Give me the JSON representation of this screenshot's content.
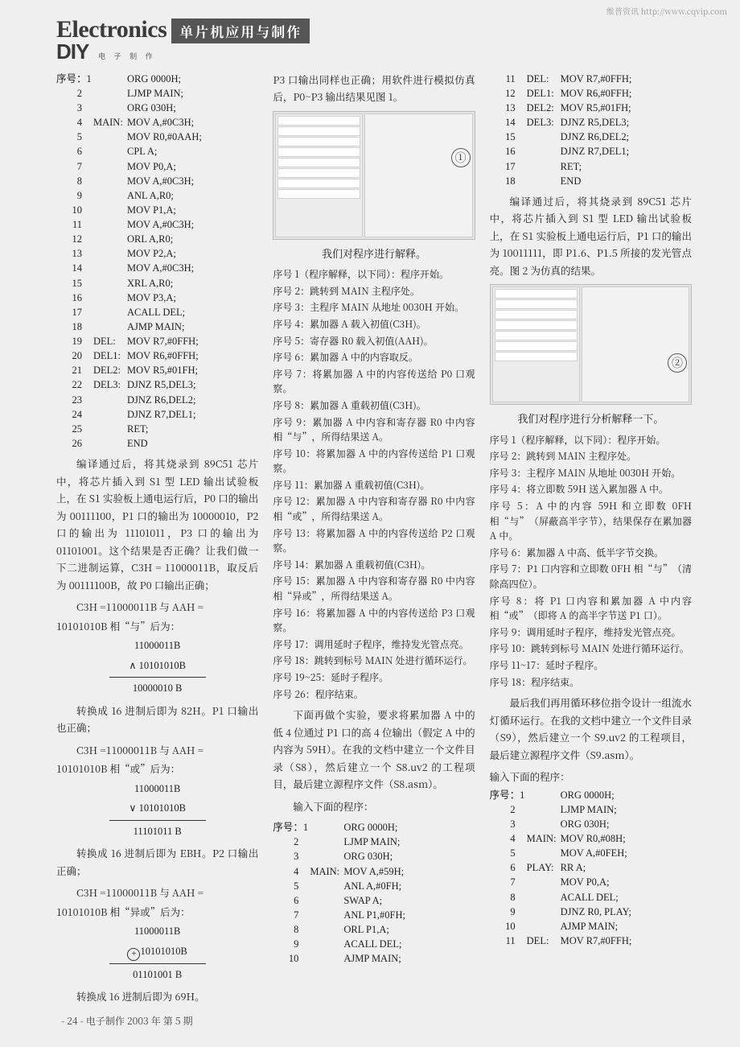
{
  "watermark": "维普资讯 http://www.cqvip.com",
  "masthead": {
    "electronics": "Electronics",
    "bar": "单片机应用与制作",
    "diy": "DIY",
    "diy_sub": "电  子  制  作"
  },
  "footer": "- 24 - 电子制作 2003 年  第 5 期",
  "codeA_label": "序号：",
  "codeA": [
    {
      "n": "1",
      "l": "",
      "c": "ORG 0000H;"
    },
    {
      "n": "2",
      "l": "",
      "c": "LJMP MAIN;"
    },
    {
      "n": "3",
      "l": "",
      "c": "ORG 030H;"
    },
    {
      "n": "4",
      "l": "MAIN:",
      "c": "MOV A,#0C3H;"
    },
    {
      "n": "5",
      "l": "",
      "c": "MOV R0,#0AAH;"
    },
    {
      "n": "6",
      "l": "",
      "c": "CPL A;"
    },
    {
      "n": "7",
      "l": "",
      "c": "MOV P0,A;"
    },
    {
      "n": "8",
      "l": "",
      "c": "MOV A,#0C3H;"
    },
    {
      "n": "9",
      "l": "",
      "c": "ANL A,R0;"
    },
    {
      "n": "10",
      "l": "",
      "c": "MOV P1,A;"
    },
    {
      "n": "11",
      "l": "",
      "c": "MOV A,#0C3H;"
    },
    {
      "n": "12",
      "l": "",
      "c": "ORL A,R0;"
    },
    {
      "n": "13",
      "l": "",
      "c": "MOV P2,A;"
    },
    {
      "n": "14",
      "l": "",
      "c": "MOV A,#0C3H;"
    },
    {
      "n": "15",
      "l": "",
      "c": "XRL A,R0;"
    },
    {
      "n": "16",
      "l": "",
      "c": "MOV P3,A;"
    },
    {
      "n": "17",
      "l": "",
      "c": "ACALL DEL;"
    },
    {
      "n": "18",
      "l": "",
      "c": "AJMP MAIN;"
    },
    {
      "n": "19",
      "l": "DEL:",
      "c": "MOV R7,#0FFH;"
    },
    {
      "n": "20",
      "l": "DEL1:",
      "c": "MOV R6,#0FFH;"
    },
    {
      "n": "21",
      "l": "DEL2:",
      "c": "MOV R5,#01FH;"
    },
    {
      "n": "22",
      "l": "DEL3:",
      "c": "DJNZ R5,DEL3;"
    },
    {
      "n": "23",
      "l": "",
      "c": "DJNZ R6,DEL2;"
    },
    {
      "n": "24",
      "l": "",
      "c": "DJNZ R7,DEL1;"
    },
    {
      "n": "25",
      "l": "",
      "c": "RET;"
    },
    {
      "n": "26",
      "l": "",
      "c": "END"
    }
  ],
  "col1_p1": "编译通过后，将其烧录到 89C51 芯片中，将芯片插入到 S1 型 LED 输出试验板上，在 S1 实验板上通电运行后，P0 口的输出为 00111100，P1 口的输出为 10000010，P2 口的输出为 11101011，P3 口的输出为 01101001。这个结果是否正确？让我们做一下二进制运算，C3H = 11000011B，取反后为 00111100B，故 P0 口输出正确；",
  "col1_eq1a": "C3H =11000011B   与  AAH =",
  "col1_eq1b": "10101010B 相“与”后为：",
  "binA1": "11000011B",
  "binA2": "∧ 10101010B",
  "binA3": "10000010  B",
  "col1_p2": "转换成 16 进制后即为 82H。P1 口输出也正确；",
  "col1_eq2a": "C3H =11000011B  与  AAH =",
  "col1_eq2b": "10101010B 相“或”后为：",
  "binB1": "11000011B",
  "binB2": "∨ 10101010B",
  "binB3": "11101011  B",
  "col1_p3": "转换成 16 进制后即为 EBH。P2 口输出正确；",
  "col1_eq3a": "C3H =11000011B  与  AAH =",
  "col1_eq3b": "10101010B 相“异或”后为：",
  "binC1": "11000011B",
  "binC2": "10101010B",
  "binC3": "01101001  B",
  "col1_p4": "转换成 16 进制后即为 69H。",
  "col2_p0": "P3 口输出同样也正确；用软件进行模拟仿真后，P0~P3 输出结果见图 1。",
  "fig1_badge": "①",
  "cap1": "我们对程序进行解释。",
  "explain1": [
    "序号 1（程序解释，以下同）：程序开始。",
    "序号 2：跳转到 MAIN 主程序处。",
    "序号 3：主程序 MAIN 从地址 0030H 开始。",
    "序号 4：累加器 A 载入初值(C3H)。",
    "序号 5：寄存器 R0 载入初值(AAH)。",
    "序号 6：累加器 A 中的内容取反。",
    "序号 7：将累加器 A 中的内容传送给 P0 口观察。",
    "序号 8：累加器 A 重载初值(C3H)。",
    "序号 9：累加器 A 中内容和寄存器 R0 中内容相“与”，所得结果送 A。",
    "序号 10：将累加器 A 中的内容传送给 P1 口观察。",
    "序号 11：累加器 A 重载初值(C3H)。",
    "序号 12：累加器 A 中内容和寄存器 R0 中内容相“或”，所得结果送 A。",
    "序号 13：将累加器 A 中的内容传送给 P2 口观察。",
    "序号 14：累加器 A 重载初值(C3H)。",
    "序号 15：累加器 A 中内容和寄存器 R0 中内容相“异或”，所得结果送 A。",
    "序号 16：将累加器 A 中的内容传送给 P3 口观察。",
    "序号 17：调用延时子程序，维持发光管点亮。",
    "序号 18：跳转到标号 MAIN 处进行循环运行。",
    "序号 19~25：延时子程序。",
    "序号 26：程序结束。"
  ],
  "col2_p1": "下面再做个实验，要求将累加器 A 中的低 4 位通过 P1 口的高 4 位输出（假定 A 中的内容为 59H）。在我的文档中建立一个文件目录（S8），然后建立一个 S8.uv2 的工程项目，最后建立源程序文件（S8.asm）。",
  "col2_p2": "输入下面的程序：",
  "codeB_label": "序号：",
  "codeB": [
    {
      "n": "1",
      "l": "",
      "c": "ORG 0000H;"
    },
    {
      "n": "2",
      "l": "",
      "c": "LJMP MAIN;"
    },
    {
      "n": "3",
      "l": "",
      "c": "ORG 030H;"
    },
    {
      "n": "4",
      "l": "MAIN:",
      "c": "MOV A,#59H;"
    },
    {
      "n": "5",
      "l": "",
      "c": "ANL A,#0FH;"
    },
    {
      "n": "6",
      "l": "",
      "c": "SWAP A;"
    },
    {
      "n": "7",
      "l": "",
      "c": "ANL P1,#0FH;"
    },
    {
      "n": "8",
      "l": "",
      "c": "ORL P1,A;"
    },
    {
      "n": "9",
      "l": "",
      "c": "ACALL DEL;"
    },
    {
      "n": "10",
      "l": "",
      "c": "AJMP MAIN;"
    }
  ],
  "codeC": [
    {
      "n": "11",
      "l": "DEL:",
      "c": "MOV R7,#0FFH;"
    },
    {
      "n": "12",
      "l": "DEL1:",
      "c": "MOV R6,#0FFH;"
    },
    {
      "n": "13",
      "l": "DEL2:",
      "c": "MOV R5,#01FH;"
    },
    {
      "n": "14",
      "l": "DEL3:",
      "c": "DJNZ R5,DEL3;"
    },
    {
      "n": "15",
      "l": "",
      "c": "DJNZ R6,DEL2;"
    },
    {
      "n": "16",
      "l": "",
      "c": "DJNZ R7,DEL1;"
    },
    {
      "n": "17",
      "l": "",
      "c": "RET;"
    },
    {
      "n": "18",
      "l": "",
      "c": "END"
    }
  ],
  "col3_p0": "编译通过后，将其烧录到 89C51 芯片中，将芯片插入到 S1 型 LED 输出试验板上，在 S1 实验板上通电运行后，P1 口的输出为 10011111，即 P1.6、P1.5 所接的发光管点亮。图 2 为仿真的结果。",
  "fig2_badge": "②",
  "cap2": "我们对程序进行分析解释一下。",
  "explain2": [
    "序号 1（程序解释，以下同）：程序开始。",
    "序号 2：跳转到 MAIN 主程序处。",
    "序号 3：主程序 MAIN 从地址 0030H 开始。",
    "序号 4：将立即数 59H 送入累加器 A 中。",
    "序号 5：A 中的内容 59H 和立即数 0FH 相“与”（屏蔽高半字节），结果保存在累加器 A 中。",
    "序号 6：累加器 A 中高、低半字节交换。",
    "序号 7：P1 口内容和立即数 0FH 相“与”（清除高四位）。",
    "序号 8：将 P1 口内容和累加器 A 中内容相“或”（即将 A 的高半字节送 P1 口）。",
    "序号 9：调用延时子程序，维持发光管点亮。",
    "序号 10：跳转到标号 MAIN 处进行循环运行。",
    "序号 11~17：延时子程序。",
    "序号 18：程序结束。"
  ],
  "col3_p1": "最后我们再用循环移位指令设计一组流水灯循环运行。在我的文档中建立一个文件目录（S9），然后建立一个 S9.uv2 的工程项目，最后建立源程序文件（S9.asm）。",
  "col3_p2": "输入下面的程序：",
  "codeD_label": "序号：",
  "codeD": [
    {
      "n": "1",
      "l": "",
      "c": "ORG 0000H;"
    },
    {
      "n": "2",
      "l": "",
      "c": "LJMP MAIN;"
    },
    {
      "n": "3",
      "l": "",
      "c": "ORG 030H;"
    },
    {
      "n": "4",
      "l": "MAIN:",
      "c": "MOV R0,#08H;"
    },
    {
      "n": "5",
      "l": "",
      "c": "MOV A,#0FEH;"
    },
    {
      "n": "6",
      "l": "PLAY:",
      "c": "RR A;"
    },
    {
      "n": "7",
      "l": "",
      "c": "MOV P0,A;"
    },
    {
      "n": "8",
      "l": "",
      "c": "ACALL DEL;"
    },
    {
      "n": "9",
      "l": "",
      "c": "DJNZ R0, PLAY;"
    },
    {
      "n": "10",
      "l": "",
      "c": "AJMP MAIN;"
    },
    {
      "n": "11",
      "l": "DEL:",
      "c": "MOV R7,#0FFH;"
    }
  ]
}
